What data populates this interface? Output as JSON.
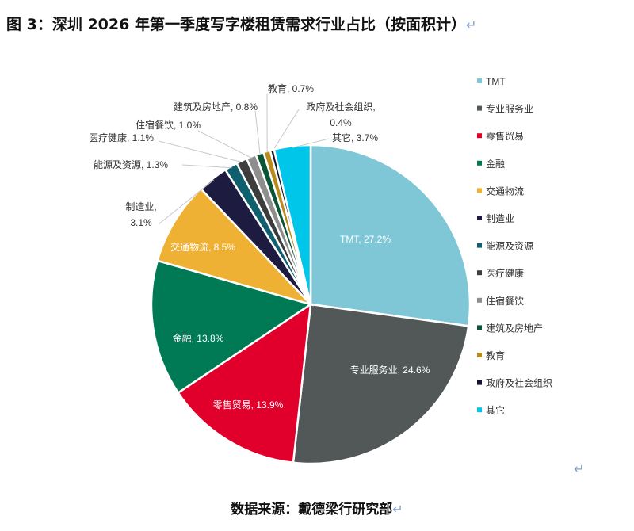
{
  "title": "图 3：深圳 2026 年第一季度写字楼租赁需求行业占比（按面积计）",
  "source": "数据来源：戴德梁行研究部",
  "return_mark": "↵",
  "chart_data": {
    "type": "pie",
    "title": "",
    "start": "top, clockwise",
    "legend_position": "right",
    "categories": [
      "TMT",
      "专业服务业",
      "零售贸易",
      "金融",
      "交通物流",
      "制造业",
      "能源及资源",
      "医疗健康",
      "住宿餐饮",
      "建筑及房地产",
      "教育",
      "政府及社会组织",
      "其它"
    ],
    "values": [
      27.2,
      24.6,
      13.9,
      13.8,
      8.5,
      3.1,
      1.3,
      1.1,
      1.0,
      0.8,
      0.7,
      0.4,
      3.7
    ],
    "data_labels": [
      "TMT, 27.2%",
      "专业服务业, 24.6%",
      "零售贸易, 13.9%",
      "金融, 13.8%",
      "交通物流, 8.5%",
      "制造业,\n3.1%",
      "能源及资源, 1.3%",
      "医疗健康, 1.1%",
      "住宿餐饮, 1.0%",
      "建筑及房地产, 0.8%",
      "教育, 0.7%",
      "政府及社会组织,\n0.4%",
      "其它, 3.7%"
    ],
    "colors": [
      "#7fc7d7",
      "#525757",
      "#e0002b",
      "#007a55",
      "#efb133",
      "#1e1b40",
      "#0f5f6f",
      "#3d3d3d",
      "#8e8e8e",
      "#0c5436",
      "#b98b1b",
      "#14142c",
      "#00c7ea"
    ]
  }
}
